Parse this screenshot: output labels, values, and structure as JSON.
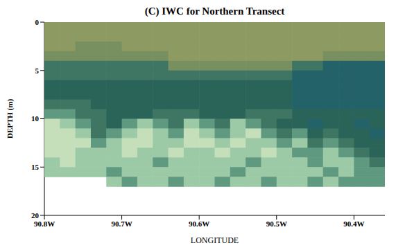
{
  "chart_data": {
    "type": "heatmap",
    "title": "(C) IWC for Northern Transect",
    "x_label": "LONGITUDE",
    "y_label": "DEPTH (m)",
    "x": [
      -90.79,
      -90.77,
      -90.75,
      -90.73,
      -90.71,
      -90.69,
      -90.67,
      -90.65,
      -90.63,
      -90.61,
      -90.59,
      -90.57,
      -90.55,
      -90.53,
      -90.51,
      -90.49,
      -90.47,
      -90.45,
      -90.43,
      -90.41,
      -90.39,
      -90.37
    ],
    "y": [
      0.5,
      1.5,
      2.5,
      3.5,
      4.5,
      5.5,
      6.5,
      7.5,
      8.5,
      9.5,
      10.5,
      11.5,
      12.5,
      13.5,
      14.5,
      15.5,
      16.5
    ],
    "xlim": [
      -90.8,
      -90.36
    ],
    "xticks": [
      {
        "value": -90.8,
        "label": "90.8W"
      },
      {
        "value": -90.7,
        "label": "90.7W"
      },
      {
        "value": -90.6,
        "label": "90.6W"
      },
      {
        "value": -90.5,
        "label": "90.5W"
      },
      {
        "value": -90.4,
        "label": "90.4W"
      }
    ],
    "ylim": [
      0,
      20
    ],
    "yticks": [
      0,
      5,
      10,
      15,
      20
    ],
    "grid": false,
    "colors": [
      [
        "#8d9b63",
        "#8d9b63",
        "#8d9b63",
        "#8d9b63",
        "#8d9b63",
        "#8d9b63",
        "#8d9b63",
        "#8d9b63",
        "#8d9b63",
        "#8d9b63",
        "#8d9b63",
        "#8d9b63",
        "#8d9b63",
        "#8d9b63",
        "#8d9b63",
        "#8d9b63",
        "#8d9b63",
        "#8d9b63",
        "#8d9b63",
        "#8d9b63",
        "#8d9b63",
        "#8d9b63"
      ],
      [
        "#8d9b63",
        "#8d9b63",
        "#8d9b63",
        "#8d9b63",
        "#8d9b63",
        "#8d9b63",
        "#8d9b63",
        "#8d9b63",
        "#8d9b63",
        "#8d9b63",
        "#8d9b63",
        "#8d9b63",
        "#8d9b63",
        "#8d9b63",
        "#8d9b63",
        "#8d9b63",
        "#8d9b63",
        "#8d9b63",
        "#8d9b63",
        "#8d9b63",
        "#8d9b63",
        "#8d9b63"
      ],
      [
        "#8d9b63",
        "#8d9b63",
        "#788f5f",
        "#788f5f",
        "#788f5f",
        "#8d9b63",
        "#8d9b63",
        "#8d9b63",
        "#8d9b63",
        "#8d9b63",
        "#8d9b63",
        "#8d9b63",
        "#8d9b63",
        "#8d9b63",
        "#8d9b63",
        "#8d9b63",
        "#8d9b63",
        "#8d9b63",
        "#8d9b63",
        "#8d9b63",
        "#8d9b63",
        "#8d9b63"
      ],
      [
        "#788f5f",
        "#788f5f",
        "#788f5f",
        "#788f5f",
        "#788f5f",
        "#788f5f",
        "#788f5f",
        "#788f5f",
        "#8d9b63",
        "#8d9b63",
        "#8d9b63",
        "#8d9b63",
        "#8d9b63",
        "#8d9b63",
        "#8d9b63",
        "#8d9b63",
        "#8d9b63",
        "#8d9b63",
        "#788f5f",
        "#788f5f",
        "#788f5f",
        "#788f5f"
      ],
      [
        "#3f7663",
        "#3f7663",
        "#3f7663",
        "#3f7663",
        "#3f7663",
        "#3f7663",
        "#3f7663",
        "#3f7663",
        "#788f5f",
        "#788f5f",
        "#788f5f",
        "#788f5f",
        "#788f5f",
        "#788f5f",
        "#788f5f",
        "#788f5f",
        "#3f7663",
        "#3f7663",
        "#24626a",
        "#24626a",
        "#24626a",
        "#24626a"
      ],
      [
        "#3f7663",
        "#3f7663",
        "#3f7663",
        "#3f7663",
        "#3f7663",
        "#3f7663",
        "#3f7663",
        "#3f7663",
        "#3f7663",
        "#3f7663",
        "#3f7663",
        "#3f7663",
        "#3f7663",
        "#3f7663",
        "#3f7663",
        "#3f7663",
        "#24626a",
        "#24626a",
        "#24626a",
        "#24626a",
        "#24626a",
        "#24626a"
      ],
      [
        "#2a6459",
        "#2a6459",
        "#2a6459",
        "#2a6459",
        "#2a6459",
        "#2a6459",
        "#2a6459",
        "#2a6459",
        "#2a6459",
        "#2a6459",
        "#2a6459",
        "#2a6459",
        "#2a6459",
        "#2a6459",
        "#2a6459",
        "#2a6459",
        "#24626a",
        "#24626a",
        "#24626a",
        "#24626a",
        "#24626a",
        "#24626a"
      ],
      [
        "#2a6459",
        "#2a6459",
        "#2a6459",
        "#2a6459",
        "#2a6459",
        "#2a6459",
        "#2a6459",
        "#2a6459",
        "#2a6459",
        "#2a6459",
        "#2a6459",
        "#2a6459",
        "#2a6459",
        "#2a6459",
        "#2a6459",
        "#2a6459",
        "#24626a",
        "#24626a",
        "#24626a",
        "#24626a",
        "#24626a",
        "#24626a"
      ],
      [
        "#3f7663",
        "#3f7663",
        "#3f7663",
        "#2a6459",
        "#2a6459",
        "#2a6459",
        "#2a6459",
        "#2a6459",
        "#2a6459",
        "#2a6459",
        "#2a6459",
        "#2a6459",
        "#2a6459",
        "#2a6459",
        "#2a6459",
        "#2a6459",
        "#24626a",
        "#24626a",
        "#24626a",
        "#24626a",
        "#24626a",
        "#24626a"
      ],
      [
        "#5f9a80",
        "#5f9a80",
        "#3f7663",
        "#3f7663",
        "#2a6459",
        "#2a6459",
        "#2a6459",
        "#3f7663",
        "#3f7663",
        "#3f7663",
        "#2a6459",
        "#2a6459",
        "#2a6459",
        "#3f7663",
        "#3f7663",
        "#3f7663",
        "#2a6459",
        "#2a6459",
        "#2a6459",
        "#2a6459",
        "#2a6459",
        "#2a6459"
      ],
      [
        "#c5dfbb",
        "#9ccaa6",
        "#5f9a80",
        "#3f7663",
        "#2a6459",
        "#5f9a80",
        "#9ccaa6",
        "#5f9a80",
        "#3f7663",
        "#9ccaa6",
        "#5f9a80",
        "#3f7663",
        "#9ccaa6",
        "#5f9a80",
        "#3f7663",
        "#2a6459",
        "#2a6459",
        "#24626a",
        "#2a6459",
        "#2a6459",
        "#24626a",
        "#2a6459"
      ],
      [
        "#c5dfbb",
        "#c5dfbb",
        "#9ccaa6",
        "#3f7663",
        "#5f9a80",
        "#9ccaa6",
        "#c5dfbb",
        "#9ccaa6",
        "#5f9a80",
        "#c5dfbb",
        "#9ccaa6",
        "#5f9a80",
        "#9ccaa6",
        "#c5dfbb",
        "#5f9a80",
        "#3f7663",
        "#5f9a80",
        "#2a6459",
        "#3f7663",
        "#2a6459",
        "#2a6459",
        "#24626a"
      ],
      [
        "#c5dfbb",
        "#c5dfbb",
        "#c5dfbb",
        "#5f9a80",
        "#9ccaa6",
        "#c5dfbb",
        "#c5dfbb",
        "#9ccaa6",
        "#9ccaa6",
        "#c5dfbb",
        "#c5dfbb",
        "#9ccaa6",
        "#c5dfbb",
        "#9ccaa6",
        "#9ccaa6",
        "#5f9a80",
        "#9ccaa6",
        "#3f7663",
        "#5f9a80",
        "#3f7663",
        "#2a6459",
        "#2a6459"
      ],
      [
        "#c5dfbb",
        "#c5dfbb",
        "#9ccaa6",
        "#9ccaa6",
        "#9ccaa6",
        "#c5dfbb",
        "#9ccaa6",
        "#9ccaa6",
        "#c5dfbb",
        "#9ccaa6",
        "#9ccaa6",
        "#c5dfbb",
        "#9ccaa6",
        "#9ccaa6",
        "#c5dfbb",
        "#9ccaa6",
        "#5f9a80",
        "#5f9a80",
        "#9ccaa6",
        "#5f9a80",
        "#3f7663",
        "#2a6459"
      ],
      [
        "#9ccaa6",
        "#c5dfbb",
        "#9ccaa6",
        "#9ccaa6",
        "#9ccaa6",
        "#9ccaa6",
        "#9ccaa6",
        "#5f9a80",
        "#9ccaa6",
        "#9ccaa6",
        "#9ccaa6",
        "#9ccaa6",
        "#9ccaa6",
        "#5f9a80",
        "#9ccaa6",
        "#9ccaa6",
        "#9ccaa6",
        "#5f9a80",
        "#9ccaa6",
        "#9ccaa6",
        "#5f9a80",
        "#3f7663"
      ],
      [
        "#9ccaa6",
        "#9ccaa6",
        "#9ccaa6",
        "#9ccaa6",
        "#5f9a80",
        "#9ccaa6",
        "#9ccaa6",
        "#9ccaa6",
        "#9ccaa6",
        "#9ccaa6",
        "#9ccaa6",
        "#9ccaa6",
        "#5f9a80",
        "#9ccaa6",
        "#9ccaa6",
        "#9ccaa6",
        "#9ccaa6",
        "#9ccaa6",
        "#5f9a80",
        "#9ccaa6",
        "#5f9a80",
        "#5f9a80"
      ],
      [
        null,
        null,
        null,
        null,
        "#9ccaa6",
        "#5f9a80",
        "#9ccaa6",
        "#9ccaa6",
        "#5f9a80",
        "#9ccaa6",
        "#9ccaa6",
        "#5f9a80",
        "#9ccaa6",
        "#9ccaa6",
        "#5f9a80",
        "#9ccaa6",
        "#9ccaa6",
        "#5f9a80",
        "#9ccaa6",
        "#5f9a80",
        "#5f9a80",
        "#5f9a80"
      ]
    ]
  }
}
